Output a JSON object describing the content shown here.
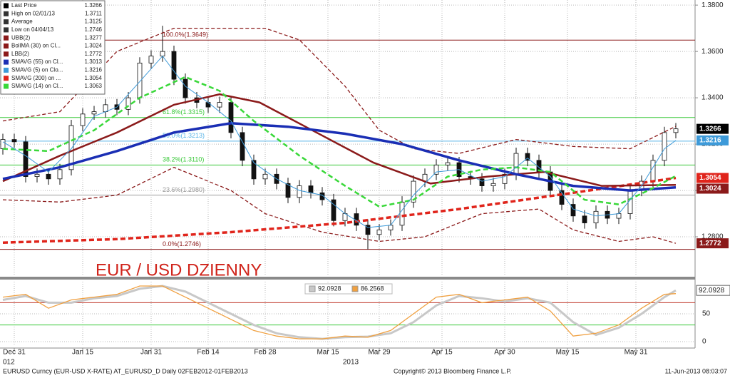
{
  "chart_data": [
    {
      "type": "candlestick",
      "annotation": "EUR / USD DZIENNY",
      "xlim": [
        -0.5,
        121.375
      ],
      "ylim": [
        1.2637,
        1.3822
      ],
      "grid": true,
      "xticks": [
        {
          "value": 2,
          "label": "Dec 31"
        },
        {
          "value": 14,
          "label": "Jan 15"
        },
        {
          "value": 26,
          "label": "Jan 31"
        },
        {
          "value": 36,
          "label": "Feb 14"
        },
        {
          "value": 46,
          "label": "Feb 28"
        },
        {
          "value": 57,
          "label": "Mar 15"
        },
        {
          "value": 66,
          "label": "Mar 29"
        },
        {
          "value": 77,
          "label": "Apr 15"
        },
        {
          "value": 88,
          "label": "Apr 30"
        },
        {
          "value": 99,
          "label": "May 15"
        },
        {
          "value": 111,
          "label": "May 31"
        }
      ],
      "x_year_labels": [
        {
          "value": 0,
          "label": "012"
        },
        {
          "value": 61,
          "label": "2013"
        }
      ],
      "yticks": [
        {
          "value": 1.28,
          "label": "1.2800"
        },
        {
          "value": 1.3,
          "label": "1.3000"
        },
        {
          "value": 1.32,
          "label": "1.3200"
        },
        {
          "value": 1.34,
          "label": "1.3400"
        },
        {
          "value": 1.36,
          "label": "1.3600"
        },
        {
          "value": 1.38,
          "label": "1.3800"
        }
      ],
      "price_name": "Last Price",
      "high_label": "High on 02/01/13",
      "average_label": "Average",
      "average": 1.3125,
      "low_label": "Low on 04/04/13",
      "candle_x": [
        0,
        2,
        4,
        6,
        8,
        10,
        12,
        14,
        16,
        18,
        20,
        22,
        24,
        26,
        28,
        30,
        32,
        34,
        36,
        38,
        40,
        42,
        44,
        46,
        48,
        50,
        52,
        54,
        56,
        58,
        60,
        62,
        64,
        66,
        68,
        70,
        72,
        74,
        76,
        78,
        80,
        82,
        84,
        86,
        88,
        90,
        92,
        94,
        96,
        98,
        100,
        102,
        104,
        106,
        108,
        110,
        112,
        114,
        116,
        118
      ],
      "open": [
        1.318,
        1.322,
        1.321,
        1.306,
        1.307,
        1.305,
        1.309,
        1.328,
        1.333,
        1.334,
        1.337,
        1.335,
        1.34,
        1.355,
        1.358,
        1.36,
        1.348,
        1.34,
        1.338,
        1.336,
        1.338,
        1.325,
        1.313,
        1.305,
        1.307,
        1.303,
        1.297,
        1.302,
        1.299,
        1.296,
        1.287,
        1.29,
        1.285,
        1.281,
        1.283,
        1.285,
        1.295,
        1.304,
        1.307,
        1.311,
        1.312,
        1.306,
        1.305,
        1.302,
        1.303,
        1.307,
        1.316,
        1.313,
        1.308,
        1.3,
        1.294,
        1.289,
        1.286,
        1.291,
        1.288,
        1.29,
        1.3,
        1.304,
        1.313,
        1.325
      ],
      "high": [
        1.3245,
        1.3245,
        1.3235,
        1.3095,
        1.3095,
        1.3115,
        1.3305,
        1.3355,
        1.3365,
        1.3395,
        1.3395,
        1.3425,
        1.3575,
        1.3605,
        1.3711,
        1.3625,
        1.3505,
        1.3425,
        1.3405,
        1.3405,
        1.3405,
        1.3275,
        1.3155,
        1.3095,
        1.3095,
        1.3055,
        1.3045,
        1.3045,
        1.3015,
        1.2985,
        1.2925,
        1.2925,
        1.2875,
        1.2855,
        1.2875,
        1.2975,
        1.3065,
        1.3095,
        1.3135,
        1.3145,
        1.3145,
        1.3085,
        1.3075,
        1.3055,
        1.3095,
        1.3185,
        1.3185,
        1.3155,
        1.3105,
        1.3025,
        1.2965,
        1.2915,
        1.2935,
        1.2935,
        1.2925,
        1.3025,
        1.3065,
        1.3155,
        1.3275,
        1.3291
      ],
      "low": [
        1.3155,
        1.3185,
        1.3035,
        1.3035,
        1.3025,
        1.3025,
        1.3065,
        1.3255,
        1.3305,
        1.3315,
        1.3325,
        1.3325,
        1.3375,
        1.3525,
        1.3555,
        1.3455,
        1.3375,
        1.3355,
        1.3335,
        1.3335,
        1.3225,
        1.3105,
        1.3025,
        1.3025,
        1.3005,
        1.2945,
        1.2945,
        1.2965,
        1.2935,
        1.2845,
        1.2845,
        1.2825,
        1.2746,
        1.2785,
        1.2805,
        1.2825,
        1.2925,
        1.3015,
        1.3045,
        1.3085,
        1.3035,
        1.3025,
        1.2995,
        1.2995,
        1.3005,
        1.3045,
        1.3105,
        1.3055,
        1.2975,
        1.2915,
        1.2865,
        1.2835,
        1.2835,
        1.2855,
        1.2855,
        1.2875,
        1.2975,
        1.3015,
        1.3105,
        1.3225
      ],
      "close": [
        1.322,
        1.321,
        1.306,
        1.307,
        1.305,
        1.309,
        1.328,
        1.333,
        1.334,
        1.337,
        1.335,
        1.34,
        1.355,
        1.358,
        1.36,
        1.348,
        1.34,
        1.338,
        1.336,
        1.338,
        1.325,
        1.313,
        1.305,
        1.307,
        1.303,
        1.297,
        1.302,
        1.299,
        1.296,
        1.287,
        1.29,
        1.285,
        1.281,
        1.283,
        1.285,
        1.295,
        1.304,
        1.307,
        1.311,
        1.312,
        1.306,
        1.305,
        1.302,
        1.303,
        1.307,
        1.316,
        1.313,
        1.308,
        1.3,
        1.294,
        1.289,
        1.286,
        1.291,
        1.288,
        1.29,
        1.3,
        1.304,
        1.313,
        1.325,
        1.3266
      ],
      "levels": [
        {
          "label": "100.0%(1.3649)",
          "value": 1.3649,
          "color": "#8b1a1a"
        },
        {
          "label": "61.8%(1.3315)",
          "value": 1.3315,
          "color": "#39c839"
        },
        {
          "label": "50.0%(1.3213)",
          "value": 1.3213,
          "color": "#5ab4e6"
        },
        {
          "label": "38.2%(1.3110)",
          "value": 1.311,
          "color": "#39c839"
        },
        {
          "label": "23.6%(1.2980)",
          "value": 1.298,
          "color": "#9a9a9a"
        },
        {
          "label": "0.0%(1.2746)",
          "value": 1.2746,
          "color": "#8b1a1a"
        }
      ],
      "series": [
        {
          "name": "UBB(2)",
          "color": "#8b1a1a",
          "style": "dashed",
          "x": [
            0,
            10,
            20,
            30,
            40,
            46,
            52,
            60,
            66,
            72,
            80,
            90,
            100,
            110,
            118
          ],
          "values": [
            1.33,
            1.334,
            1.36,
            1.37,
            1.37,
            1.37,
            1.365,
            1.345,
            1.326,
            1.318,
            1.316,
            1.322,
            1.319,
            1.318,
            1.3277
          ]
        },
        {
          "name": "BollMA (30) on Cl...",
          "color": "#8b1a1a",
          "style": "solid",
          "x": [
            0,
            10,
            20,
            30,
            38,
            45,
            55,
            65,
            75,
            85,
            95,
            105,
            118
          ],
          "values": [
            1.304,
            1.315,
            1.325,
            1.337,
            1.3415,
            1.338,
            1.325,
            1.312,
            1.303,
            1.306,
            1.308,
            1.302,
            1.3024
          ]
        },
        {
          "name": "LBB(2)",
          "color": "#8b1a1a",
          "style": "dashed",
          "x": [
            0,
            10,
            20,
            30,
            40,
            46,
            56,
            66,
            74,
            84,
            94,
            100,
            108,
            114,
            118
          ],
          "values": [
            1.296,
            1.295,
            1.298,
            1.31,
            1.3,
            1.29,
            1.282,
            1.278,
            1.28,
            1.29,
            1.292,
            1.283,
            1.278,
            1.28,
            1.2772
          ]
        },
        {
          "name": "SMAVG (55) on Cl...",
          "color": "#1a2eb4",
          "style": "solid",
          "x": [
            0,
            10,
            20,
            30,
            40,
            50,
            60,
            70,
            80,
            90,
            100,
            110,
            118
          ],
          "values": [
            1.305,
            1.31,
            1.317,
            1.325,
            1.329,
            1.3275,
            1.3245,
            1.32,
            1.313,
            1.307,
            1.302,
            1.3,
            1.3013
          ]
        },
        {
          "name": "SMAVG (5) on Clo...",
          "color": "#3d9ad9",
          "style": "solid",
          "x": [
            0,
            4,
            8,
            12,
            16,
            20,
            24,
            28,
            32,
            36,
            40,
            44,
            48,
            52,
            56,
            60,
            64,
            68,
            72,
            76,
            80,
            84,
            88,
            92,
            96,
            100,
            104,
            108,
            112,
            116,
            118
          ],
          "values": [
            1.321,
            1.315,
            1.308,
            1.318,
            1.332,
            1.336,
            1.347,
            1.358,
            1.345,
            1.338,
            1.33,
            1.312,
            1.305,
            1.3,
            1.298,
            1.29,
            1.284,
            1.285,
            1.298,
            1.308,
            1.309,
            1.304,
            1.306,
            1.314,
            1.306,
            1.292,
            1.289,
            1.29,
            1.302,
            1.318,
            1.3216
          ]
        },
        {
          "name": "SMAVG (200) on ...",
          "color": "#e0241b",
          "style": "dashed",
          "x": [
            0,
            20,
            40,
            60,
            80,
            100,
            118
          ],
          "values": [
            1.2775,
            1.279,
            1.282,
            1.286,
            1.292,
            1.299,
            1.3054
          ]
        },
        {
          "name": "SMAVG (14) on Cl...",
          "color": "#39d839",
          "style": "dashed",
          "x": [
            0,
            8,
            16,
            24,
            32,
            38,
            44,
            52,
            60,
            66,
            72,
            78,
            84,
            90,
            96,
            102,
            108,
            114,
            118
          ],
          "values": [
            1.318,
            1.317,
            1.326,
            1.34,
            1.349,
            1.343,
            1.33,
            1.315,
            1.302,
            1.293,
            1.296,
            1.306,
            1.309,
            1.31,
            1.308,
            1.296,
            1.294,
            1.301,
            1.3063
          ]
        }
      ]
    },
    {
      "type": "line",
      "xlim": [
        -0.5,
        121.375
      ],
      "ylim": [
        -7.7,
        107.7
      ],
      "yticks": [
        0,
        50
      ],
      "levels": [
        {
          "value": 70,
          "color": "#c0392b"
        },
        {
          "value": 30,
          "color": "#39c839"
        }
      ],
      "x": [
        0,
        4,
        8,
        12,
        16,
        20,
        24,
        28,
        32,
        36,
        40,
        44,
        48,
        52,
        56,
        60,
        64,
        68,
        72,
        76,
        80,
        84,
        88,
        92,
        96,
        100,
        104,
        108,
        112,
        116,
        118
      ],
      "series": [
        {
          "color": "#c8c8c8",
          "values": [
            75,
            82,
            70,
            70,
            78,
            82,
            95,
            100,
            90,
            70,
            50,
            30,
            15,
            8,
            5,
            8,
            9,
            15,
            35,
            65,
            82,
            78,
            72,
            78,
            70,
            35,
            12,
            25,
            50,
            80,
            92.0928
          ]
        },
        {
          "color": "#f0a040",
          "values": [
            80,
            85,
            60,
            75,
            80,
            85,
            100,
            100,
            80,
            60,
            40,
            20,
            10,
            5,
            5,
            10,
            8,
            20,
            50,
            80,
            85,
            70,
            75,
            80,
            55,
            10,
            15,
            30,
            60,
            85,
            86.2568
          ]
        }
      ]
    }
  ],
  "footer": {
    "left": "EURUSD Curncy (EUR-USD X-RATE) AT_EURUSD_D  Daily 02FEB2012-01FEB2013",
    "center": "Copyright© 2013 Bloomberg Finance L.P.",
    "right": "11-Jun-2013 08:03:07"
  }
}
